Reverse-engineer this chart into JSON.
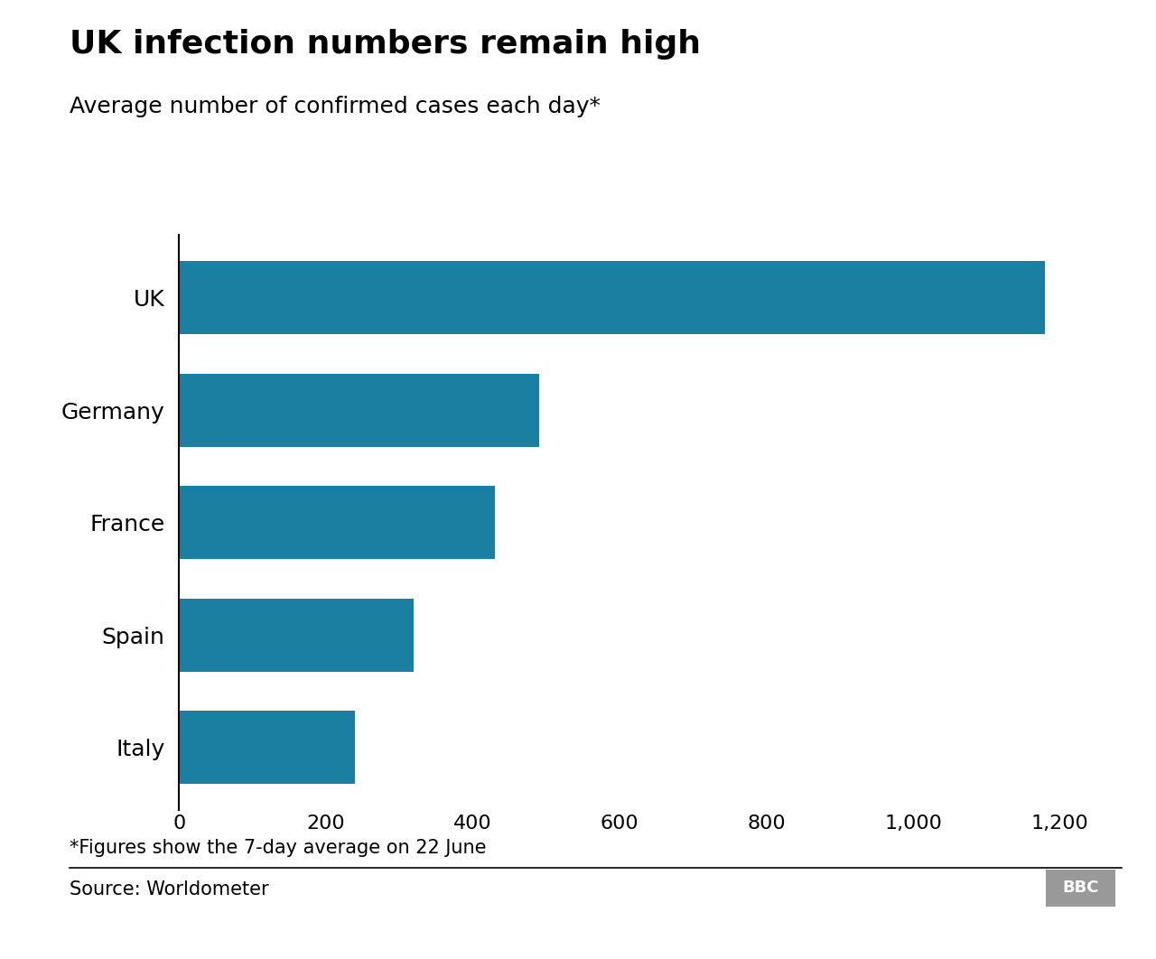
{
  "title": "UK infection numbers remain high",
  "subtitle": "Average number of confirmed cases each day*",
  "footnote": "*Figures show the 7-day average on 22 June",
  "source": "Source: Worldometer",
  "categories": [
    "UK",
    "Germany",
    "France",
    "Spain",
    "Italy"
  ],
  "values": [
    1180,
    490,
    430,
    320,
    240
  ],
  "bar_color": "#1a7fa0",
  "background_color": "#ffffff",
  "xlim": [
    0,
    1260
  ],
  "xticks": [
    0,
    200,
    400,
    600,
    800,
    1000,
    1200
  ],
  "title_fontsize": 26,
  "subtitle_fontsize": 18,
  "tick_fontsize": 16,
  "label_fontsize": 18,
  "footnote_fontsize": 15,
  "source_fontsize": 15
}
